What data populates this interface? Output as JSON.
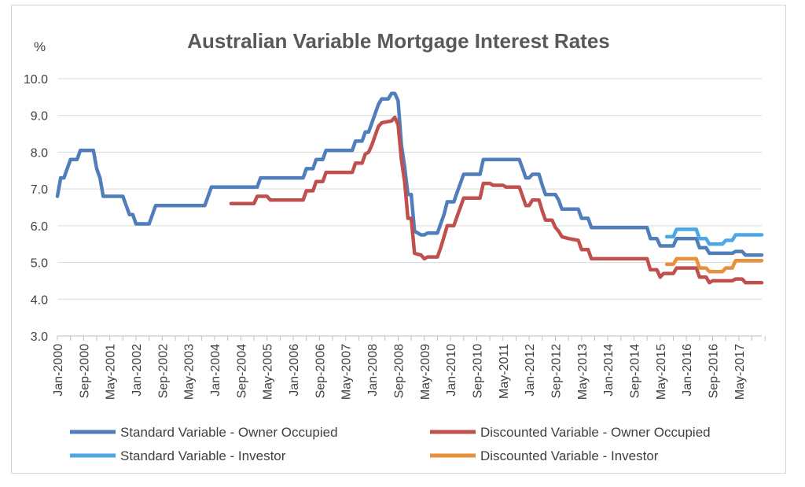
{
  "chart_data": {
    "type": "line",
    "title": "Australian Variable Mortgage Interest Rates",
    "ylabel": "%",
    "xlabel": "",
    "ylim": [
      3.0,
      10.0
    ],
    "yticks": [
      "3.0",
      "4.0",
      "5.0",
      "6.0",
      "7.0",
      "8.0",
      "9.0",
      "10.0"
    ],
    "xlim": [
      "2000-01",
      "2017-12"
    ],
    "xticks": [
      "Jan-2000",
      "Sep-2000",
      "May-2001",
      "Jan-2002",
      "Sep-2002",
      "May-2003",
      "Jan-2004",
      "Sep-2004",
      "May-2005",
      "Jan-2006",
      "Sep-2006",
      "May-2007",
      "Jan-2008",
      "Sep-2008",
      "May-2009",
      "Jan-2010",
      "Sep-2010",
      "May-2011",
      "Jan-2012",
      "Sep-2012",
      "May-2013",
      "Jan-2014",
      "Sep-2014",
      "May-2015",
      "Jan-2016",
      "Sep-2016",
      "May-2017"
    ],
    "grid": true,
    "legend_position": "bottom",
    "series": [
      {
        "name": "Standard Variable - Owner Occupied",
        "color": "#4f7ebb",
        "points": [
          [
            "2000-01",
            6.8
          ],
          [
            "2000-02",
            7.3
          ],
          [
            "2000-03",
            7.3
          ],
          [
            "2000-04",
            7.55
          ],
          [
            "2000-05",
            7.8
          ],
          [
            "2000-07",
            7.8
          ],
          [
            "2000-08",
            8.05
          ],
          [
            "2000-12",
            8.05
          ],
          [
            "2001-01",
            7.55
          ],
          [
            "2001-02",
            7.3
          ],
          [
            "2001-03",
            6.8
          ],
          [
            "2001-09",
            6.8
          ],
          [
            "2001-10",
            6.55
          ],
          [
            "2001-11",
            6.3
          ],
          [
            "2001-12",
            6.3
          ],
          [
            "2002-01",
            6.05
          ],
          [
            "2002-05",
            6.05
          ],
          [
            "2002-06",
            6.3
          ],
          [
            "2002-07",
            6.55
          ],
          [
            "2003-10",
            6.55
          ],
          [
            "2003-11",
            6.8
          ],
          [
            "2003-12",
            7.05
          ],
          [
            "2005-02",
            7.05
          ],
          [
            "2005-03",
            7.3
          ],
          [
            "2006-04",
            7.3
          ],
          [
            "2006-05",
            7.55
          ],
          [
            "2006-07",
            7.55
          ],
          [
            "2006-08",
            7.8
          ],
          [
            "2006-10",
            7.8
          ],
          [
            "2006-11",
            8.05
          ],
          [
            "2007-07",
            8.05
          ],
          [
            "2007-08",
            8.3
          ],
          [
            "2007-10",
            8.3
          ],
          [
            "2007-11",
            8.55
          ],
          [
            "2007-12",
            8.55
          ],
          [
            "2008-01",
            8.8
          ],
          [
            "2008-02",
            9.05
          ],
          [
            "2008-03",
            9.3
          ],
          [
            "2008-04",
            9.45
          ],
          [
            "2008-06",
            9.45
          ],
          [
            "2008-07",
            9.6
          ],
          [
            "2008-08",
            9.6
          ],
          [
            "2008-09",
            9.4
          ],
          [
            "2008-10",
            8.2
          ],
          [
            "2008-11",
            7.6
          ],
          [
            "2008-12",
            6.85
          ],
          [
            "2009-01",
            6.85
          ],
          [
            "2009-02",
            5.85
          ],
          [
            "2009-04",
            5.75
          ],
          [
            "2009-05",
            5.75
          ],
          [
            "2009-06",
            5.8
          ],
          [
            "2009-09",
            5.8
          ],
          [
            "2009-10",
            6.05
          ],
          [
            "2009-11",
            6.3
          ],
          [
            "2009-12",
            6.65
          ],
          [
            "2010-02",
            6.65
          ],
          [
            "2010-03",
            6.9
          ],
          [
            "2010-04",
            7.15
          ],
          [
            "2010-05",
            7.4
          ],
          [
            "2010-10",
            7.4
          ],
          [
            "2010-11",
            7.8
          ],
          [
            "2011-10",
            7.8
          ],
          [
            "2011-11",
            7.55
          ],
          [
            "2011-12",
            7.3
          ],
          [
            "2012-01",
            7.3
          ],
          [
            "2012-02",
            7.4
          ],
          [
            "2012-04",
            7.4
          ],
          [
            "2012-05",
            7.1
          ],
          [
            "2012-06",
            6.85
          ],
          [
            "2012-09",
            6.85
          ],
          [
            "2012-10",
            6.7
          ],
          [
            "2012-11",
            6.45
          ],
          [
            "2013-04",
            6.45
          ],
          [
            "2013-05",
            6.2
          ],
          [
            "2013-07",
            6.2
          ],
          [
            "2013-08",
            5.95
          ],
          [
            "2015-01",
            5.95
          ],
          [
            "2015-02",
            5.65
          ],
          [
            "2015-04",
            5.65
          ],
          [
            "2015-05",
            5.45
          ],
          [
            "2015-09",
            5.45
          ],
          [
            "2015-10",
            5.65
          ],
          [
            "2016-04",
            5.65
          ],
          [
            "2016-05",
            5.4
          ],
          [
            "2016-07",
            5.4
          ],
          [
            "2016-08",
            5.25
          ],
          [
            "2017-03",
            5.25
          ],
          [
            "2017-04",
            5.3
          ],
          [
            "2017-06",
            5.3
          ],
          [
            "2017-07",
            5.2
          ],
          [
            "2017-12",
            5.2
          ]
        ]
      },
      {
        "name": "Discounted Variable - Owner Occupied",
        "color": "#c0504d",
        "points": [
          [
            "2004-06",
            6.6
          ],
          [
            "2005-01",
            6.6
          ],
          [
            "2005-02",
            6.8
          ],
          [
            "2005-05",
            6.8
          ],
          [
            "2005-06",
            6.7
          ],
          [
            "2006-04",
            6.7
          ],
          [
            "2006-05",
            6.95
          ],
          [
            "2006-07",
            6.95
          ],
          [
            "2006-08",
            7.2
          ],
          [
            "2006-10",
            7.2
          ],
          [
            "2006-11",
            7.45
          ],
          [
            "2007-07",
            7.45
          ],
          [
            "2007-08",
            7.7
          ],
          [
            "2007-10",
            7.7
          ],
          [
            "2007-11",
            7.95
          ],
          [
            "2007-12",
            8.0
          ],
          [
            "2008-01",
            8.2
          ],
          [
            "2008-02",
            8.45
          ],
          [
            "2008-03",
            8.7
          ],
          [
            "2008-04",
            8.8
          ],
          [
            "2008-07",
            8.85
          ],
          [
            "2008-08",
            8.95
          ],
          [
            "2008-09",
            8.75
          ],
          [
            "2008-10",
            7.8
          ],
          [
            "2008-11",
            7.2
          ],
          [
            "2008-12",
            6.2
          ],
          [
            "2009-01",
            6.2
          ],
          [
            "2009-02",
            5.25
          ],
          [
            "2009-04",
            5.2
          ],
          [
            "2009-05",
            5.1
          ],
          [
            "2009-06",
            5.15
          ],
          [
            "2009-09",
            5.15
          ],
          [
            "2009-10",
            5.4
          ],
          [
            "2009-11",
            5.7
          ],
          [
            "2009-12",
            6.0
          ],
          [
            "2010-02",
            6.0
          ],
          [
            "2010-03",
            6.25
          ],
          [
            "2010-04",
            6.5
          ],
          [
            "2010-05",
            6.75
          ],
          [
            "2010-10",
            6.75
          ],
          [
            "2010-11",
            7.15
          ],
          [
            "2011-01",
            7.15
          ],
          [
            "2011-02",
            7.1
          ],
          [
            "2011-05",
            7.1
          ],
          [
            "2011-06",
            7.05
          ],
          [
            "2011-10",
            7.05
          ],
          [
            "2011-11",
            6.8
          ],
          [
            "2011-12",
            6.55
          ],
          [
            "2012-01",
            6.55
          ],
          [
            "2012-02",
            6.7
          ],
          [
            "2012-04",
            6.7
          ],
          [
            "2012-05",
            6.4
          ],
          [
            "2012-06",
            6.15
          ],
          [
            "2012-08",
            6.15
          ],
          [
            "2012-09",
            5.95
          ],
          [
            "2012-10",
            5.85
          ],
          [
            "2012-11",
            5.7
          ],
          [
            "2013-01",
            5.65
          ],
          [
            "2013-04",
            5.6
          ],
          [
            "2013-05",
            5.35
          ],
          [
            "2013-07",
            5.35
          ],
          [
            "2013-08",
            5.1
          ],
          [
            "2015-01",
            5.1
          ],
          [
            "2015-02",
            4.8
          ],
          [
            "2015-04",
            4.8
          ],
          [
            "2015-05",
            4.6
          ],
          [
            "2015-06",
            4.7
          ],
          [
            "2015-09",
            4.7
          ],
          [
            "2015-10",
            4.85
          ],
          [
            "2016-04",
            4.85
          ],
          [
            "2016-05",
            4.6
          ],
          [
            "2016-07",
            4.6
          ],
          [
            "2016-08",
            4.45
          ],
          [
            "2016-09",
            4.5
          ],
          [
            "2017-03",
            4.5
          ],
          [
            "2017-04",
            4.55
          ],
          [
            "2017-06",
            4.55
          ],
          [
            "2017-07",
            4.45
          ],
          [
            "2017-12",
            4.45
          ]
        ]
      },
      {
        "name": "Standard Variable - Investor",
        "color": "#4da6e5",
        "points": [
          [
            "2015-07",
            5.7
          ],
          [
            "2015-09",
            5.7
          ],
          [
            "2015-10",
            5.9
          ],
          [
            "2016-04",
            5.9
          ],
          [
            "2016-05",
            5.65
          ],
          [
            "2016-07",
            5.65
          ],
          [
            "2016-08",
            5.5
          ],
          [
            "2016-12",
            5.5
          ],
          [
            "2017-01",
            5.6
          ],
          [
            "2017-03",
            5.6
          ],
          [
            "2017-04",
            5.75
          ],
          [
            "2017-12",
            5.75
          ]
        ]
      },
      {
        "name": "Discounted Variable - Investor",
        "color": "#e8903a",
        "points": [
          [
            "2015-07",
            4.95
          ],
          [
            "2015-09",
            4.95
          ],
          [
            "2015-10",
            5.1
          ],
          [
            "2016-04",
            5.1
          ],
          [
            "2016-05",
            4.85
          ],
          [
            "2016-07",
            4.85
          ],
          [
            "2016-08",
            4.75
          ],
          [
            "2016-12",
            4.75
          ],
          [
            "2017-01",
            4.85
          ],
          [
            "2017-03",
            4.85
          ],
          [
            "2017-04",
            5.05
          ],
          [
            "2017-12",
            5.05
          ]
        ]
      }
    ]
  }
}
